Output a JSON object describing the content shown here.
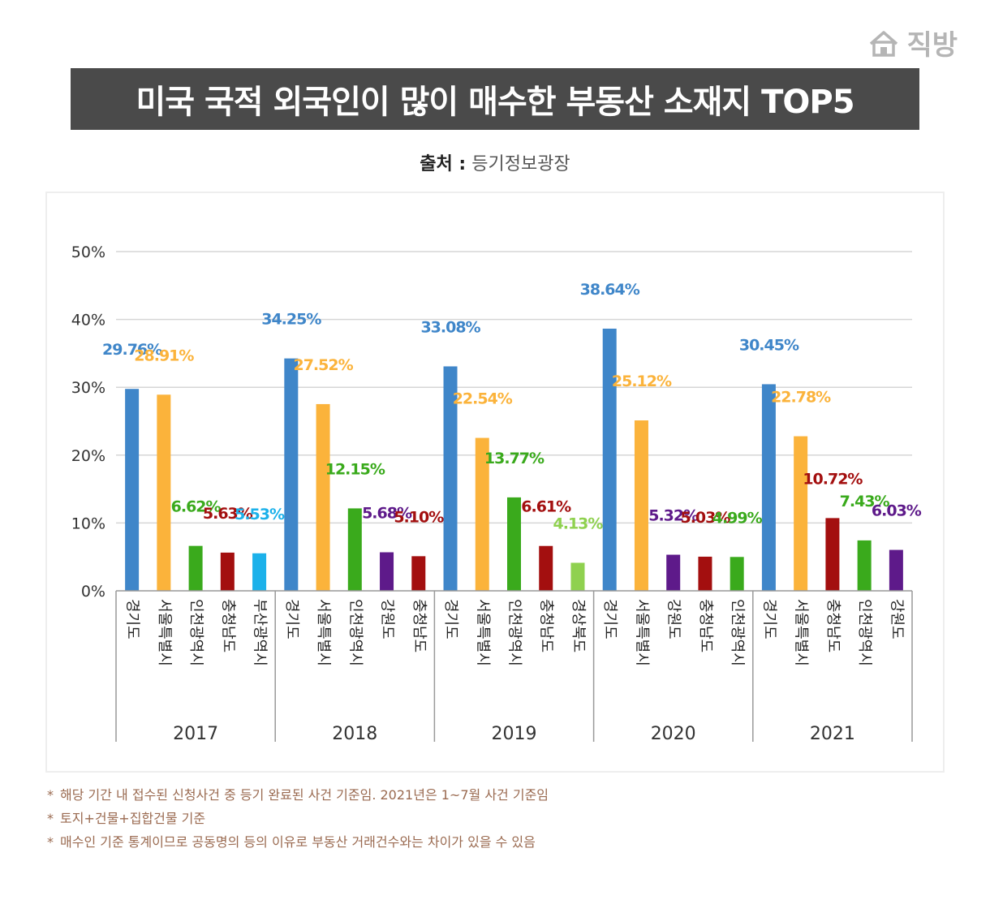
{
  "brand": {
    "name": "직방",
    "logo_icon": "house-logo-icon",
    "color": "#b5b5b5"
  },
  "header": {
    "title": "미국 국적 외국인이 많이 매수한 부동산 소재지 TOP5"
  },
  "source": {
    "label": "출처 :",
    "value": "등기정보광장"
  },
  "notes": [
    {
      "marker": "*",
      "text": "해당 기간 내 접수된 신청사건 중 등기 완료된 사건 기준임. 2021년은 1~7월 사건 기준임"
    },
    {
      "marker": "*",
      "text": "토지+건물+집합건물 기준"
    },
    {
      "marker": "*",
      "text": "매수인 기준 통계이므로 공동명의 등의 이유로 부동산 거래건수와는 차이가 있을 수 있음"
    }
  ],
  "chart_data": {
    "type": "bar",
    "title": "",
    "xlabel": "",
    "ylabel": "",
    "ylim": [
      0,
      50
    ],
    "yticks": [
      "0%",
      "10%",
      "20%",
      "30%",
      "40%",
      "50%"
    ],
    "grid": true,
    "legend": "none",
    "groups": [
      {
        "year": "2017",
        "bars": [
          {
            "region": "경기도",
            "value": 29.76,
            "label": "29.76%",
            "color": "#3f86c9"
          },
          {
            "region": "서울특별시",
            "value": 28.91,
            "label": "28.91%",
            "color": "#fbb33b"
          },
          {
            "region": "인천광역시",
            "value": 6.62,
            "label": "6.62%",
            "color": "#3aaa1c"
          },
          {
            "region": "충청남도",
            "value": 5.63,
            "label": "5.63%",
            "color": "#a30f0f"
          },
          {
            "region": "부산광역시",
            "value": 5.53,
            "label": "5.53%",
            "color": "#1cb1ea"
          }
        ]
      },
      {
        "year": "2018",
        "bars": [
          {
            "region": "경기도",
            "value": 34.25,
            "label": "34.25%",
            "color": "#3f86c9"
          },
          {
            "region": "서울특별시",
            "value": 27.52,
            "label": "27.52%",
            "color": "#fbb33b"
          },
          {
            "region": "인천광역시",
            "value": 12.15,
            "label": "12.15%",
            "color": "#3aaa1c"
          },
          {
            "region": "강원도",
            "value": 5.68,
            "label": "5.68%",
            "color": "#5e1a8a"
          },
          {
            "region": "충청남도",
            "value": 5.1,
            "label": "5.10%",
            "color": "#a30f0f"
          }
        ]
      },
      {
        "year": "2019",
        "bars": [
          {
            "region": "경기도",
            "value": 33.08,
            "label": "33.08%",
            "color": "#3f86c9"
          },
          {
            "region": "서울특별시",
            "value": 22.54,
            "label": "22.54%",
            "color": "#fbb33b"
          },
          {
            "region": "인천광역시",
            "value": 13.77,
            "label": "13.77%",
            "color": "#3aaa1c"
          },
          {
            "region": "충청남도",
            "value": 6.61,
            "label": "6.61%",
            "color": "#a30f0f"
          },
          {
            "region": "경상북도",
            "value": 4.13,
            "label": "4.13%",
            "color": "#8fd14f"
          }
        ]
      },
      {
        "year": "2020",
        "bars": [
          {
            "region": "경기도",
            "value": 38.64,
            "label": "38.64%",
            "color": "#3f86c9"
          },
          {
            "region": "서울특별시",
            "value": 25.12,
            "label": "25.12%",
            "color": "#fbb33b"
          },
          {
            "region": "강원도",
            "value": 5.32,
            "label": "5.32%",
            "color": "#5e1a8a"
          },
          {
            "region": "충청남도",
            "value": 5.03,
            "label": "5.03%",
            "color": "#a30f0f"
          },
          {
            "region": "인천광역시",
            "value": 4.99,
            "label": "4.99%",
            "color": "#3aaa1c"
          }
        ]
      },
      {
        "year": "2021",
        "bars": [
          {
            "region": "경기도",
            "value": 30.45,
            "label": "30.45%",
            "color": "#3f86c9"
          },
          {
            "region": "서울특별시",
            "value": 22.78,
            "label": "22.78%",
            "color": "#fbb33b"
          },
          {
            "region": "충청남도",
            "value": 10.72,
            "label": "10.72%",
            "color": "#a30f0f"
          },
          {
            "region": "인천광역시",
            "value": 7.43,
            "label": "7.43%",
            "color": "#3aaa1c"
          },
          {
            "region": "강원도",
            "value": 6.03,
            "label": "6.03%",
            "color": "#5e1a8a"
          }
        ]
      }
    ]
  }
}
